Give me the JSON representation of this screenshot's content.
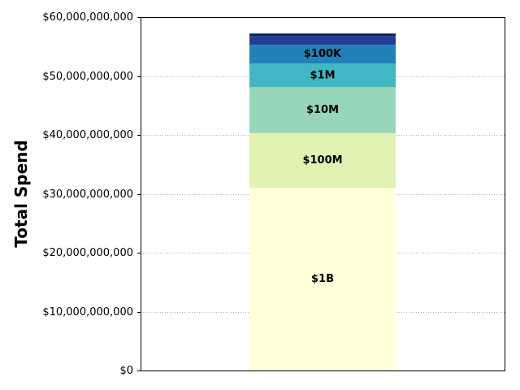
{
  "chart_data": {
    "type": "bar",
    "stacked": true,
    "categories": [
      ""
    ],
    "series": [
      {
        "name": "$1B",
        "values": [
          31000000000
        ],
        "color": "#ffffd9"
      },
      {
        "name": "$100M",
        "values": [
          9300000000
        ],
        "color": "#e0f3b2"
      },
      {
        "name": "$10M",
        "values": [
          7800000000
        ],
        "color": "#97d6b9"
      },
      {
        "name": "$1M",
        "values": [
          4000000000
        ],
        "color": "#41b6c4"
      },
      {
        "name": "$100K",
        "values": [
          3200000000
        ],
        "color": "#2182b9"
      },
      {
        "name": "",
        "values": [
          1500000000
        ],
        "color": "#243d94"
      },
      {
        "name": "",
        "values": [
          400000000
        ],
        "color": "#081d58"
      }
    ],
    "title": "",
    "xlabel": "",
    "ylabel": "Total Spend",
    "ylim": [
      0,
      60000000000
    ],
    "yticks": [
      0,
      10000000000,
      20000000000,
      30000000000,
      40000000000,
      50000000000,
      60000000000
    ],
    "ytick_labels": [
      "$0",
      "$10,000,000,000",
      "$20,000,000,000",
      "$30,000,000,000",
      "$40,000,000,000",
      "$50,000,000,000",
      "$60,000,000,000"
    ],
    "grid": {
      "y": true,
      "x": false
    },
    "legend": "none"
  }
}
